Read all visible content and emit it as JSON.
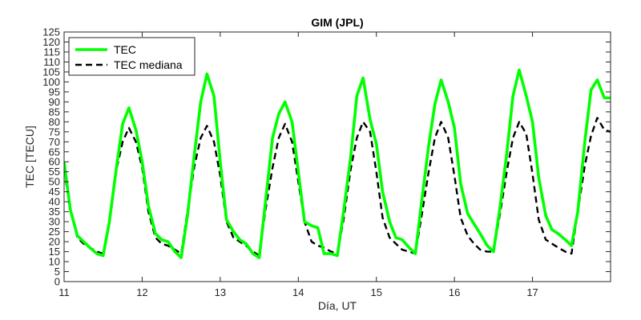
{
  "chart_data": {
    "type": "line",
    "title": "GIM (JPL)",
    "xlabel": "Día, UT",
    "ylabel": "TEC [TECU]",
    "xlim": [
      11,
      18
    ],
    "ylim": [
      0,
      125
    ],
    "xticks": [
      11,
      12,
      13,
      14,
      15,
      16,
      17
    ],
    "yticks": [
      0,
      5,
      10,
      15,
      20,
      25,
      30,
      35,
      40,
      45,
      50,
      55,
      60,
      65,
      70,
      75,
      80,
      85,
      90,
      95,
      100,
      105,
      110,
      115,
      120,
      125
    ],
    "grid": false,
    "legend_position": "top-left",
    "series": [
      {
        "name": "TEC",
        "color": "#00ff00",
        "style": "solid",
        "x": [
          11.0,
          11.08,
          11.17,
          11.25,
          11.33,
          11.42,
          11.5,
          11.58,
          11.67,
          11.75,
          11.83,
          11.92,
          12.0,
          12.08,
          12.17,
          12.25,
          12.33,
          12.42,
          12.5,
          12.58,
          12.67,
          12.75,
          12.83,
          12.92,
          13.0,
          13.08,
          13.17,
          13.25,
          13.33,
          13.42,
          13.5,
          13.58,
          13.67,
          13.75,
          13.83,
          13.92,
          14.0,
          14.08,
          14.17,
          14.25,
          14.33,
          14.42,
          14.5,
          14.58,
          14.67,
          14.75,
          14.83,
          14.92,
          15.0,
          15.08,
          15.17,
          15.25,
          15.33,
          15.42,
          15.5,
          15.58,
          15.67,
          15.75,
          15.83,
          15.92,
          16.0,
          16.08,
          16.17,
          16.25,
          16.33,
          16.42,
          16.5,
          16.58,
          16.67,
          16.75,
          16.83,
          16.92,
          17.0,
          17.08,
          17.17,
          17.25,
          17.33,
          17.42,
          17.5,
          17.58,
          17.67,
          17.75,
          17.83,
          17.92,
          18.0
        ],
        "y": [
          60,
          36,
          23,
          20,
          17,
          14,
          13,
          30,
          57,
          79,
          87,
          76,
          60,
          38,
          24,
          21,
          20,
          15,
          12,
          33,
          64,
          90,
          104,
          93,
          60,
          31,
          25,
          21,
          19,
          14,
          12,
          40,
          72,
          84,
          90,
          80,
          55,
          30,
          28,
          27,
          14,
          14,
          13,
          35,
          62,
          93,
          102,
          81,
          69,
          45,
          30,
          22,
          21,
          17,
          14,
          40,
          68,
          89,
          101,
          90,
          77,
          49,
          34,
          29,
          24,
          18,
          15,
          36,
          64,
          93,
          106,
          93,
          80,
          52,
          33,
          26,
          24,
          21,
          18,
          35,
          70,
          96,
          101,
          92,
          92
        ]
      },
      {
        "name": "TEC mediana",
        "color": "#000000",
        "style": "dashed",
        "x": [
          11.0,
          11.08,
          11.17,
          11.25,
          11.33,
          11.42,
          11.5,
          11.58,
          11.67,
          11.75,
          11.83,
          11.92,
          12.0,
          12.08,
          12.17,
          12.25,
          12.33,
          12.42,
          12.5,
          12.58,
          12.67,
          12.75,
          12.83,
          12.92,
          13.0,
          13.08,
          13.17,
          13.25,
          13.33,
          13.42,
          13.5,
          13.58,
          13.67,
          13.75,
          13.83,
          13.92,
          14.0,
          14.08,
          14.17,
          14.25,
          14.33,
          14.42,
          14.5,
          14.58,
          14.67,
          14.75,
          14.83,
          14.92,
          15.0,
          15.08,
          15.17,
          15.25,
          15.33,
          15.42,
          15.5,
          15.58,
          15.67,
          15.75,
          15.83,
          15.92,
          16.0,
          16.08,
          16.17,
          16.25,
          16.33,
          16.42,
          16.5,
          16.58,
          16.67,
          16.75,
          16.83,
          16.92,
          17.0,
          17.08,
          17.17,
          17.25,
          17.33,
          17.42,
          17.5,
          17.58,
          17.67,
          17.75,
          17.83,
          17.92,
          18.0
        ],
        "y": [
          56,
          36,
          22,
          19,
          17,
          15,
          14,
          30,
          56,
          70,
          77,
          70,
          57,
          35,
          22,
          19,
          18,
          16,
          14,
          35,
          58,
          72,
          78,
          70,
          53,
          30,
          22,
          20,
          18,
          15,
          13,
          36,
          57,
          72,
          79,
          70,
          50,
          30,
          20,
          18,
          17,
          15,
          14,
          31,
          56,
          72,
          80,
          75,
          55,
          32,
          22,
          19,
          16,
          15,
          14,
          33,
          55,
          72,
          80,
          72,
          53,
          32,
          23,
          19,
          16,
          15,
          15,
          33,
          55,
          72,
          80,
          74,
          54,
          31,
          21,
          19,
          17,
          15,
          14,
          35,
          58,
          73,
          82,
          76,
          75
        ]
      }
    ]
  }
}
